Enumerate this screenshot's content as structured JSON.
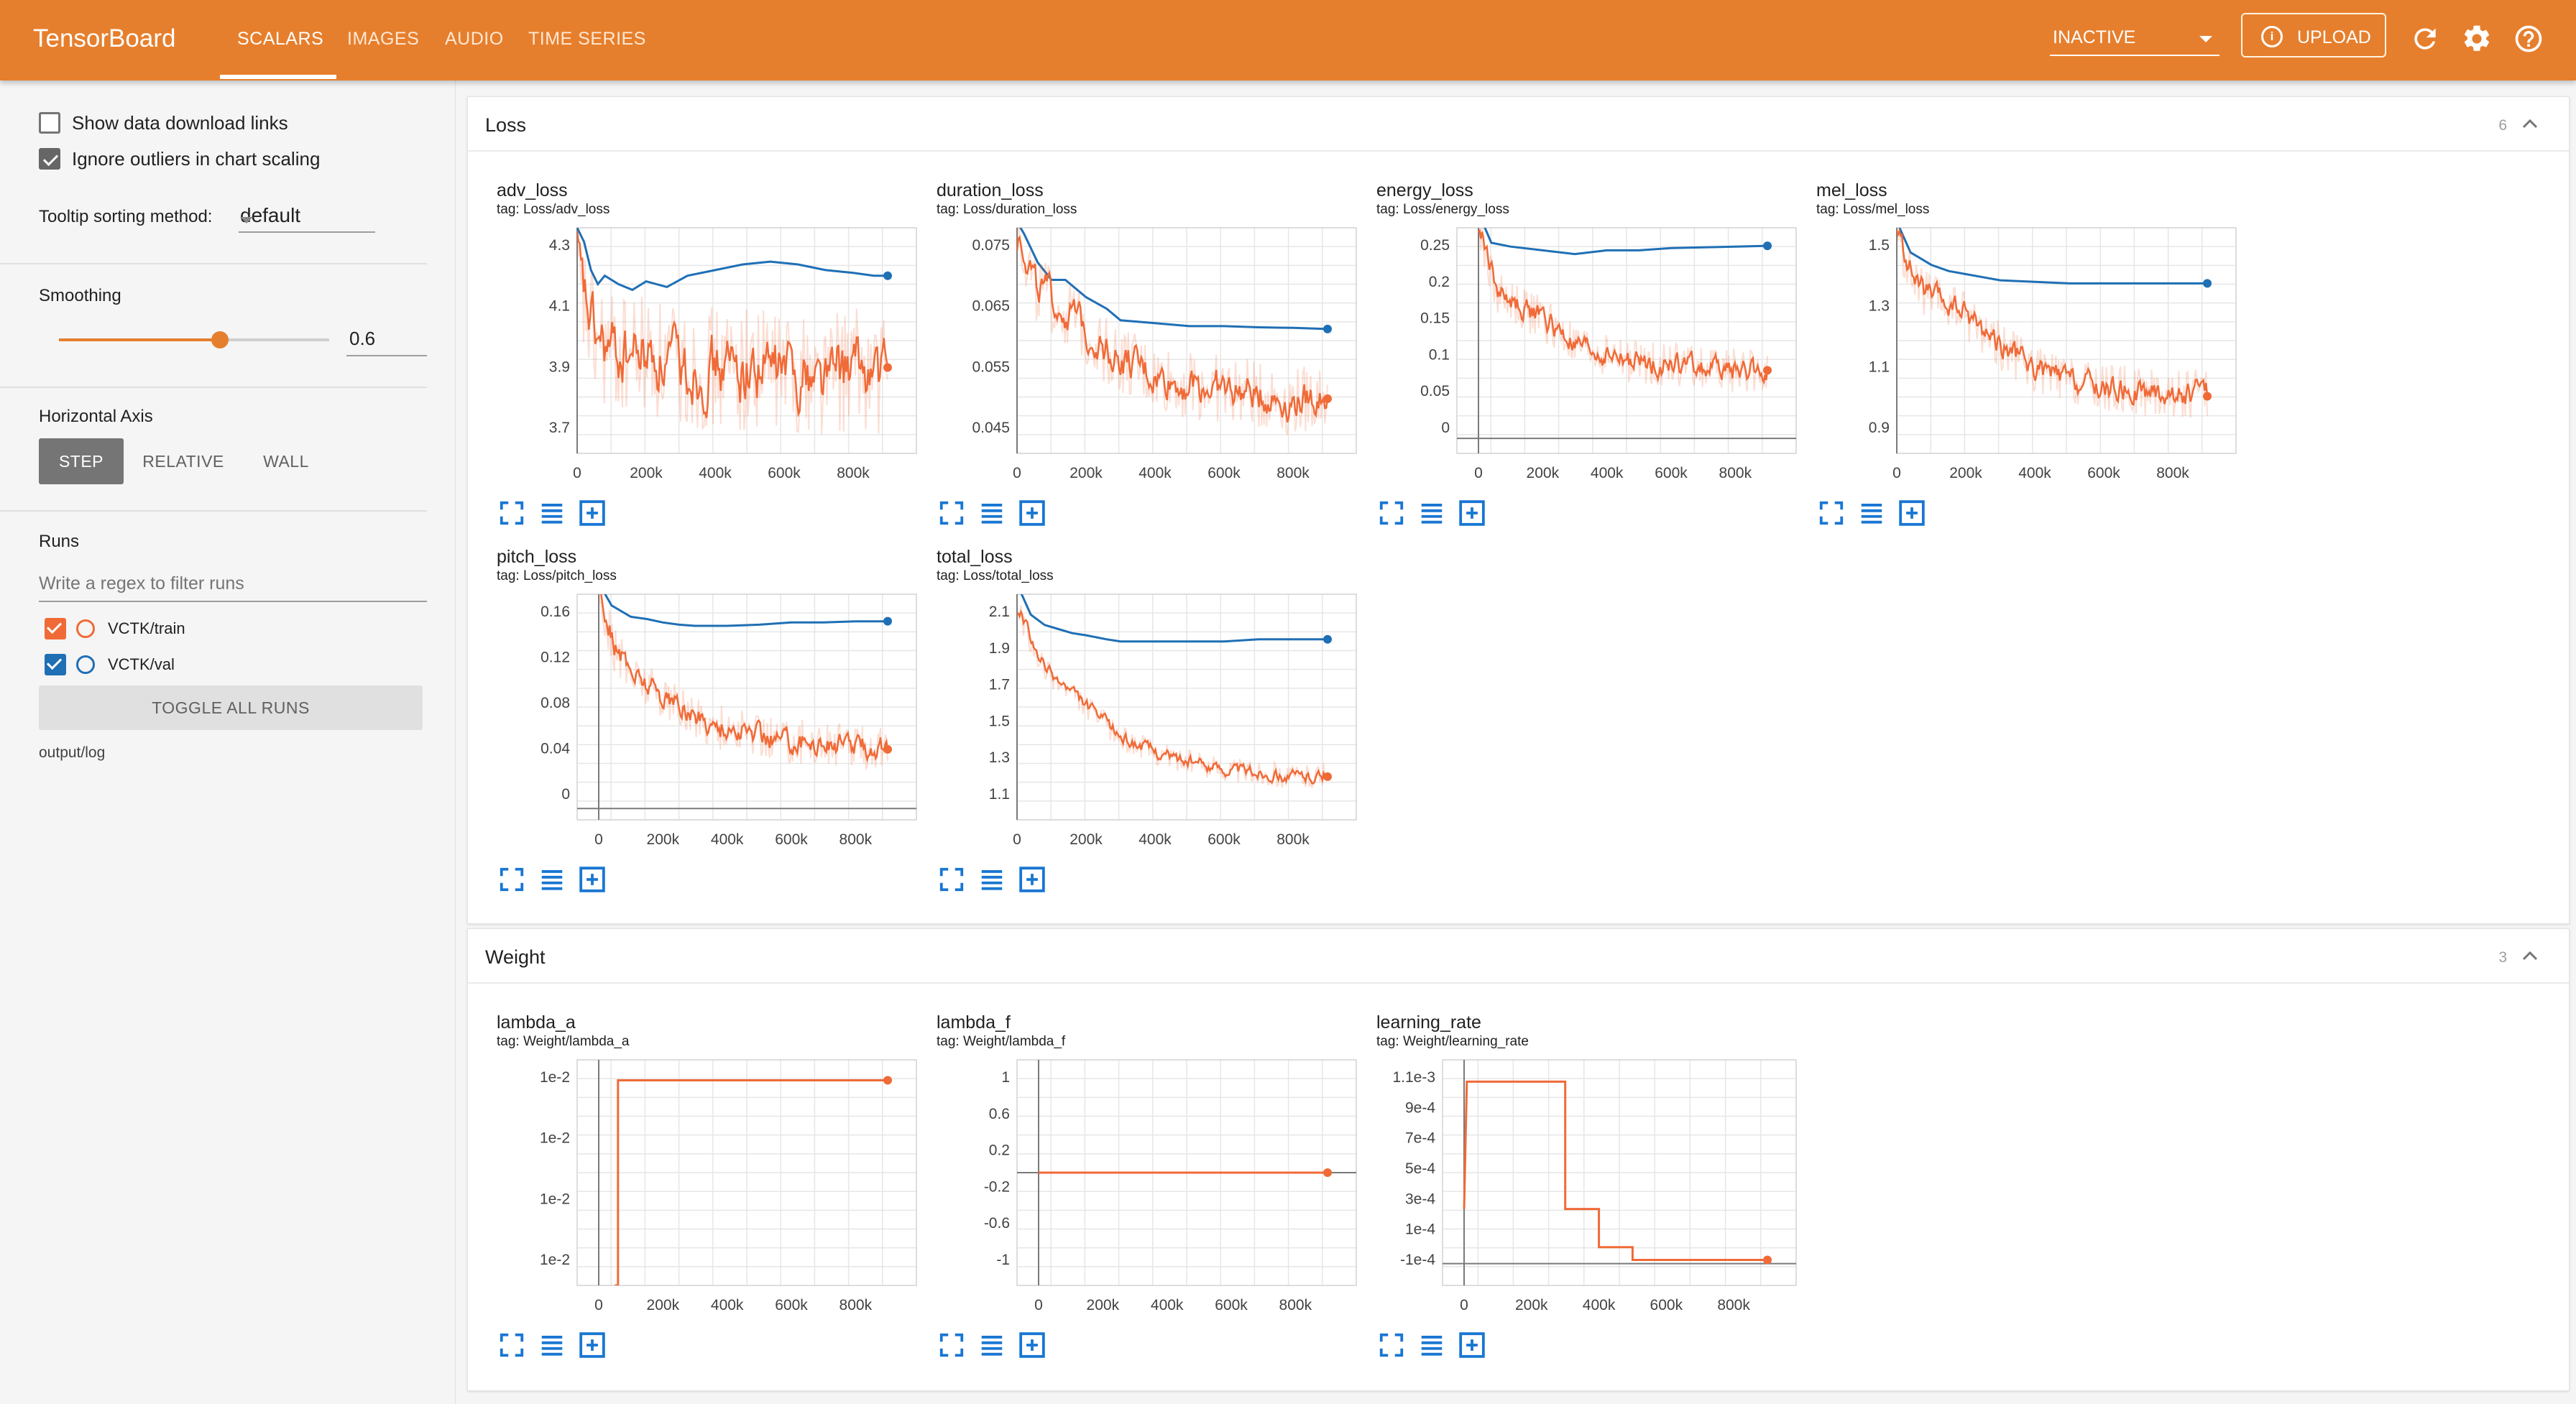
{
  "app": {
    "title": "TensorBoard",
    "tabs": [
      {
        "label": "SCALARS",
        "active": true
      },
      {
        "label": "IMAGES",
        "active": false
      },
      {
        "label": "AUDIO",
        "active": false
      },
      {
        "label": "TIME SERIES",
        "active": false
      }
    ],
    "reload_select": "INACTIVE",
    "upload_label": "UPLOAD",
    "accent_color": "#e67f2d",
    "icons": [
      "refresh-icon",
      "settings-icon",
      "help-icon"
    ]
  },
  "sidebar": {
    "show_download_links": {
      "label": "Show data download links",
      "checked": false
    },
    "ignore_outliers": {
      "label": "Ignore outliers in chart scaling",
      "checked": true
    },
    "tooltip_sorting": {
      "label": "Tooltip sorting method:",
      "value": "default"
    },
    "smoothing": {
      "label": "Smoothing",
      "value": "0.6",
      "fraction": 0.6
    },
    "horizontal_axis": {
      "label": "Horizontal Axis",
      "options": [
        "STEP",
        "RELATIVE",
        "WALL"
      ],
      "selected": "STEP"
    },
    "runs": {
      "label": "Runs",
      "filter_placeholder": "Write a regex to filter runs",
      "items": [
        {
          "name": "VCTK/train",
          "color": "#f06a37",
          "checked": true
        },
        {
          "name": "VCTK/val",
          "color": "#1f6fb5",
          "checked": true
        }
      ],
      "toggle_all_label": "TOGGLE ALL RUNS",
      "log_dir": "output/log"
    }
  },
  "groups": [
    {
      "title": "Loss",
      "count": "6"
    },
    {
      "title": "Weight",
      "count": "3"
    }
  ],
  "chart_data": [
    {
      "type": "line",
      "title": "adv_loss",
      "tag": "tag: Loss/adv_loss",
      "x_ticks": [
        "0",
        "200k",
        "400k",
        "600k",
        "800k"
      ],
      "xlim": [
        0,
        900000
      ],
      "y_ticks": [
        "4.3",
        "4.1",
        "3.9",
        "3.7"
      ],
      "ylim": [
        3.6,
        4.4
      ],
      "series": [
        {
          "name": "VCTK/val",
          "color": "#1f6fb5",
          "x": [
            0,
            20000,
            40000,
            60000,
            80000,
            120000,
            160000,
            200000,
            260000,
            320000,
            400000,
            480000,
            560000,
            640000,
            720000,
            800000,
            860000,
            900000
          ],
          "y": [
            4.4,
            4.35,
            4.25,
            4.2,
            4.23,
            4.2,
            4.18,
            4.21,
            4.19,
            4.23,
            4.25,
            4.27,
            4.28,
            4.27,
            4.25,
            4.24,
            4.23,
            4.23
          ]
        },
        {
          "name": "VCTK/train",
          "color": "#f06a37",
          "smoothed": true,
          "noise": 0.22,
          "x": [
            0,
            50000,
            100000,
            200000,
            300000,
            400000,
            500000,
            600000,
            700000,
            800000,
            900000
          ],
          "y": [
            4.2,
            4.0,
            3.95,
            3.95,
            3.9,
            3.9,
            3.9,
            3.9,
            3.88,
            3.9,
            3.87
          ]
        }
      ]
    },
    {
      "type": "line",
      "title": "duration_loss",
      "tag": "tag: Loss/duration_loss",
      "x_ticks": [
        "0",
        "200k",
        "400k",
        "600k",
        "800k"
      ],
      "xlim": [
        0,
        900000
      ],
      "y_ticks": [
        "0.075",
        "0.065",
        "0.055",
        "0.045"
      ],
      "ylim": [
        0.041,
        0.08
      ],
      "series": [
        {
          "name": "VCTK/val",
          "color": "#1f6fb5",
          "x": [
            0,
            20000,
            60000,
            100000,
            140000,
            200000,
            260000,
            300000,
            400000,
            500000,
            600000,
            700000,
            800000,
            900000
          ],
          "y": [
            0.081,
            0.079,
            0.074,
            0.071,
            0.071,
            0.068,
            0.066,
            0.064,
            0.0635,
            0.063,
            0.063,
            0.0628,
            0.0627,
            0.0625
          ]
        },
        {
          "name": "VCTK/train",
          "color": "#f06a37",
          "smoothed": true,
          "noise": 0.006,
          "x": [
            0,
            50000,
            100000,
            150000,
            200000,
            300000,
            400000,
            500000,
            600000,
            700000,
            800000,
            900000
          ],
          "y": [
            0.08,
            0.07,
            0.067,
            0.065,
            0.062,
            0.057,
            0.054,
            0.053,
            0.052,
            0.051,
            0.05,
            0.051
          ]
        }
      ]
    },
    {
      "type": "line",
      "title": "energy_loss",
      "tag": "tag: Loss/energy_loss",
      "x_ticks": [
        "0",
        "200k",
        "400k",
        "600k",
        "800k"
      ],
      "xlim": [
        0,
        900000
      ],
      "y_ticks": [
        "0.25",
        "0.2",
        "0.15",
        "0.1",
        "0.05",
        "0"
      ],
      "ylim": [
        -0.02,
        0.28
      ],
      "series": [
        {
          "name": "VCTK/val",
          "color": "#1f6fb5",
          "x": [
            0,
            40000,
            100000,
            200000,
            300000,
            400000,
            500000,
            600000,
            700000,
            800000,
            900000
          ],
          "y": [
            0.3,
            0.26,
            0.255,
            0.25,
            0.245,
            0.25,
            0.25,
            0.253,
            0.254,
            0.255,
            0.256
          ]
        },
        {
          "name": "VCTK/train",
          "color": "#f06a37",
          "smoothed": true,
          "noise": 0.03,
          "x": [
            0,
            50000,
            100000,
            200000,
            300000,
            400000,
            500000,
            600000,
            700000,
            800000,
            900000
          ],
          "y": [
            0.28,
            0.2,
            0.18,
            0.16,
            0.12,
            0.11,
            0.1,
            0.1,
            0.095,
            0.09,
            0.09
          ]
        }
      ]
    },
    {
      "type": "line",
      "title": "mel_loss",
      "tag": "tag: Loss/mel_loss",
      "x_ticks": [
        "0",
        "200k",
        "400k",
        "600k",
        "800k"
      ],
      "xlim": [
        0,
        900000
      ],
      "y_ticks": [
        "1.5",
        "1.3",
        "1.1",
        "0.9"
      ],
      "ylim": [
        0.85,
        1.58
      ],
      "series": [
        {
          "name": "VCTK/val",
          "color": "#1f6fb5",
          "x": [
            0,
            40000,
            100000,
            150000,
            200000,
            250000,
            300000,
            400000,
            500000,
            600000,
            700000,
            800000,
            900000
          ],
          "y": [
            1.6,
            1.5,
            1.46,
            1.44,
            1.43,
            1.42,
            1.41,
            1.405,
            1.4,
            1.4,
            1.4,
            1.4,
            1.4
          ]
        },
        {
          "name": "VCTK/train",
          "color": "#f06a37",
          "smoothed": true,
          "noise": 0.08,
          "x": [
            0,
            50000,
            100000,
            200000,
            300000,
            400000,
            500000,
            600000,
            700000,
            800000,
            900000
          ],
          "y": [
            1.55,
            1.4,
            1.35,
            1.3,
            1.2,
            1.12,
            1.08,
            1.06,
            1.05,
            1.04,
            1.05
          ]
        }
      ]
    },
    {
      "type": "line",
      "title": "pitch_loss",
      "tag": "tag: Loss/pitch_loss",
      "x_ticks": [
        "0",
        "200k",
        "400k",
        "600k",
        "800k"
      ],
      "xlim": [
        0,
        900000
      ],
      "y_ticks": [
        "0.16",
        "0.12",
        "0.08",
        "0.04",
        "0"
      ],
      "ylim": [
        -0.01,
        0.19
      ],
      "series": [
        {
          "name": "VCTK/val",
          "color": "#1f6fb5",
          "x": [
            0,
            40000,
            100000,
            150000,
            200000,
            250000,
            300000,
            400000,
            500000,
            600000,
            700000,
            800000,
            900000
          ],
          "y": [
            0.2,
            0.18,
            0.17,
            0.168,
            0.165,
            0.163,
            0.162,
            0.162,
            0.163,
            0.165,
            0.165,
            0.166,
            0.166
          ]
        },
        {
          "name": "VCTK/train",
          "color": "#f06a37",
          "smoothed": true,
          "noise": 0.02,
          "x": [
            0,
            50000,
            100000,
            200000,
            300000,
            400000,
            500000,
            600000,
            700000,
            800000,
            900000
          ],
          "y": [
            0.19,
            0.14,
            0.12,
            0.1,
            0.08,
            0.07,
            0.065,
            0.06,
            0.058,
            0.055,
            0.055
          ]
        }
      ]
    },
    {
      "type": "line",
      "title": "total_loss",
      "tag": "tag: Loss/total_loss",
      "x_ticks": [
        "0",
        "200k",
        "400k",
        "600k",
        "800k"
      ],
      "xlim": [
        0,
        900000
      ],
      "y_ticks": [
        "2.1",
        "1.9",
        "1.7",
        "1.5",
        "1.3",
        "1.1"
      ],
      "ylim": [
        1.05,
        2.15
      ],
      "series": [
        {
          "name": "VCTK/val",
          "color": "#1f6fb5",
          "x": [
            0,
            40000,
            80000,
            120000,
            160000,
            200000,
            260000,
            300000,
            400000,
            500000,
            600000,
            700000,
            800000,
            900000
          ],
          "y": [
            2.2,
            2.05,
            2.0,
            1.98,
            1.96,
            1.95,
            1.93,
            1.92,
            1.92,
            1.92,
            1.92,
            1.93,
            1.93,
            1.93
          ]
        },
        {
          "name": "VCTK/train",
          "color": "#f06a37",
          "smoothed": true,
          "noise": 0.06,
          "x": [
            0,
            50000,
            100000,
            200000,
            300000,
            400000,
            500000,
            600000,
            700000,
            800000,
            900000
          ],
          "y": [
            2.1,
            1.85,
            1.75,
            1.6,
            1.45,
            1.38,
            1.33,
            1.3,
            1.28,
            1.26,
            1.27
          ]
        }
      ]
    },
    {
      "type": "line",
      "title": "lambda_a",
      "tag": "tag: Weight/lambda_a",
      "x_ticks": [
        "0",
        "200k",
        "400k",
        "600k",
        "800k"
      ],
      "xlim": [
        0,
        900000
      ],
      "y_ticks": [
        "1e-2",
        "1e-2",
        "1e-2",
        "1e-2"
      ],
      "ylim": [
        0,
        1.1
      ],
      "series": [
        {
          "name": "VCTK/train",
          "color": "#f06a37",
          "x": [
            50000,
            50000,
            60000,
            60000,
            900000
          ],
          "y": [
            0.0,
            0.0,
            0.0,
            1.0,
            1.0
          ]
        }
      ]
    },
    {
      "type": "line",
      "title": "lambda_f",
      "tag": "tag: Weight/lambda_f",
      "x_ticks": [
        "0",
        "200k",
        "400k",
        "600k",
        "800k"
      ],
      "xlim": [
        0,
        900000
      ],
      "y_ticks": [
        "1",
        "0.6",
        "0.2",
        "-0.2",
        "-0.6",
        "-1"
      ],
      "ylim": [
        -1.12,
        1.12
      ],
      "series": [
        {
          "name": "VCTK/train",
          "color": "#f06a37",
          "x": [
            0,
            900000
          ],
          "y": [
            0,
            0
          ]
        }
      ]
    },
    {
      "type": "line",
      "title": "learning_rate",
      "tag": "tag: Weight/learning_rate",
      "x_ticks": [
        "0",
        "200k",
        "400k",
        "600k",
        "800k"
      ],
      "xlim": [
        0,
        900000
      ],
      "y_ticks": [
        "1.1e-3",
        "9e-4",
        "7e-4",
        "5e-4",
        "3e-4",
        "1e-4",
        "-1e-4"
      ],
      "ylim": [
        -0.00012,
        0.00112
      ],
      "series": [
        {
          "name": "VCTK/train",
          "color": "#f06a37",
          "x": [
            0,
            8000,
            15000,
            300000,
            300000,
            400000,
            400000,
            500000,
            500000,
            900000
          ],
          "y": [
            0.0003,
            0.001,
            0.001,
            0.001,
            0.0003,
            0.0003,
            9e-05,
            9e-05,
            2e-05,
            2e-05
          ]
        }
      ]
    }
  ]
}
